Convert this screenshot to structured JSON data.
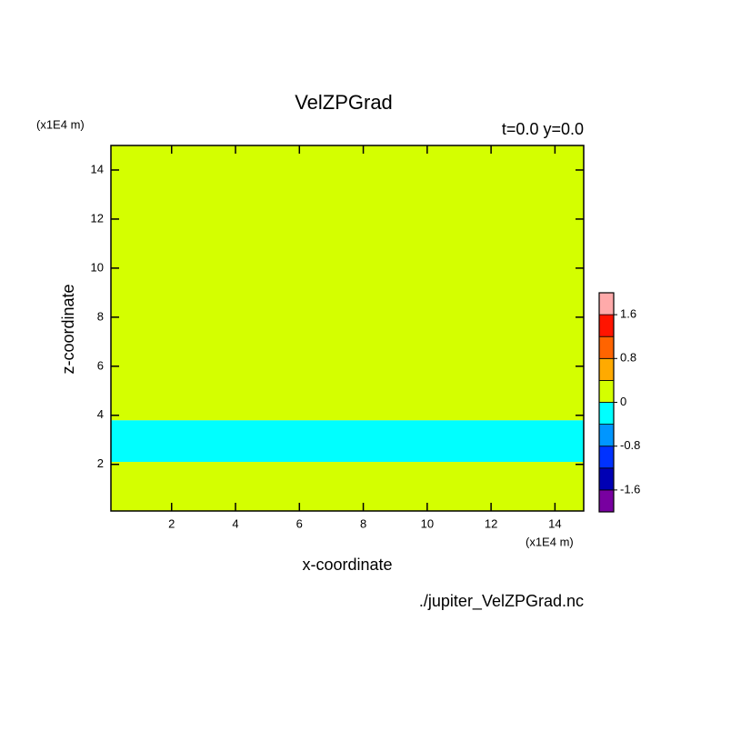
{
  "chart_data": {
    "type": "contour",
    "title": "VelZPGrad",
    "subtitle": "t=0.0 y=0.0",
    "x_label": "x-coordinate",
    "y_label": "z-coordinate",
    "x_unit": "(x1E4 m)",
    "y_unit": "(x1E4 m)",
    "source": "./jupiter_VelZPGrad.nc",
    "xlim": [
      0.1,
      14.9
    ],
    "ylim": [
      0.1,
      15
    ],
    "xticks": [
      2,
      4,
      6,
      8,
      10,
      12,
      14
    ],
    "yticks": [
      2,
      4,
      6,
      8,
      10,
      12,
      14
    ],
    "regions": [
      {
        "z": [
          0.1,
          2.1
        ],
        "value": 0.2
      },
      {
        "z": [
          2.1,
          3.8
        ],
        "value": -0.2
      },
      {
        "z": [
          3.8,
          15
        ],
        "value": 0.2
      }
    ],
    "levels": [
      -2.0,
      -1.6,
      -1.2,
      -0.8,
      -0.4,
      0,
      0.4,
      0.8,
      1.2,
      1.6,
      2.0
    ],
    "colors": [
      "#7800a0",
      "#0000b4",
      "#0032ff",
      "#0096ff",
      "#00ffff",
      "#d4ff00",
      "#ffaa00",
      "#ff6400",
      "#ff1400",
      "#ffaaaa"
    ],
    "colorbar_ticks": [
      -1.6,
      -0.8,
      0,
      0.8,
      1.6
    ]
  }
}
